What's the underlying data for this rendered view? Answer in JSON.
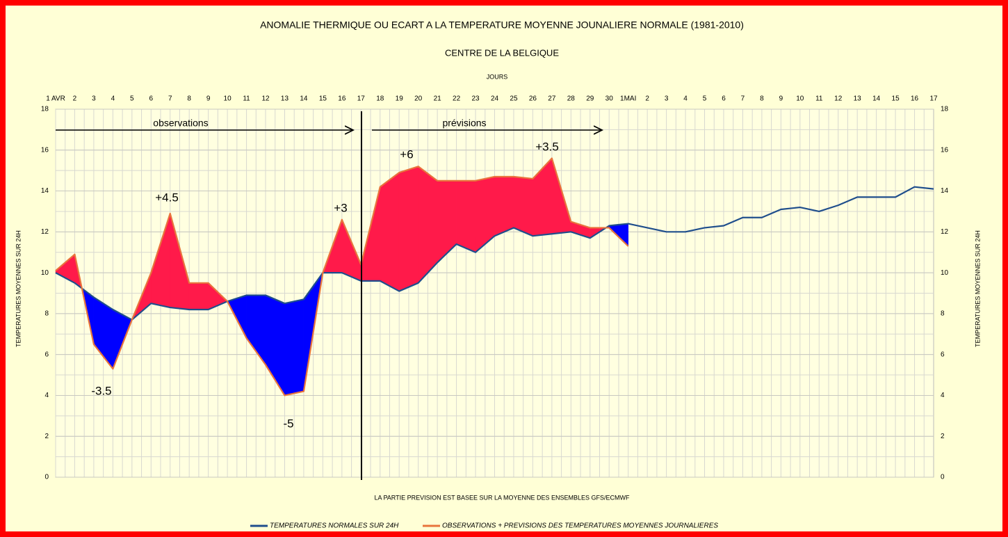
{
  "chart_data": {
    "type": "line",
    "title": "ANOMALIE THERMIQUE OU ECART A LA TEMPERATURE MOYENNE JOUNALIERE NORMALE (1981-2010)",
    "subtitle": "CENTRE DE LA BELGIQUE",
    "x_label": "JOURS",
    "y_label": "TEMPERATURES MOYENNES SUR 24H",
    "note": "LA PARTIE PREVISION EST BASEE SUR LA MOYENNE DES ENSEMBLES GFS/ECMWF",
    "categories": [
      "1 AVR",
      "2",
      "3",
      "4",
      "5",
      "6",
      "7",
      "8",
      "9",
      "10",
      "11",
      "12",
      "13",
      "14",
      "15",
      "16",
      "17",
      "18",
      "19",
      "20",
      "21",
      "22",
      "23",
      "24",
      "25",
      "26",
      "27",
      "28",
      "29",
      "30",
      "1MAI",
      "2",
      "3",
      "4",
      "5",
      "6",
      "7",
      "8",
      "9",
      "10",
      "11",
      "12",
      "13",
      "14",
      "15",
      "16",
      "17"
    ],
    "series": [
      {
        "name": "TEMPERATURES NORMALES SUR 24H",
        "color": "#1f4e8c",
        "values": [
          10.0,
          9.5,
          8.8,
          8.2,
          7.7,
          8.5,
          8.3,
          8.2,
          8.2,
          8.6,
          8.9,
          8.9,
          8.5,
          8.7,
          10.0,
          10.0,
          9.6,
          9.6,
          9.1,
          9.5,
          10.5,
          11.4,
          11.0,
          11.8,
          12.2,
          11.8,
          11.9,
          12.0,
          11.7,
          12.3,
          12.4,
          12.2,
          12.0,
          12.0,
          12.2,
          12.3,
          12.7,
          12.7,
          13.1,
          13.2,
          13.0,
          13.3,
          13.7,
          13.7,
          13.7,
          14.2,
          14.1
        ]
      },
      {
        "name": "OBSERVATIONS + PREVISIONS DES TEMPERATURES MOYENNES JOURNALIERES",
        "color": "#e8743c",
        "values": [
          10.1,
          10.9,
          6.5,
          5.3,
          7.7,
          10.0,
          12.9,
          9.5,
          9.5,
          8.6,
          6.8,
          5.5,
          4.0,
          4.2,
          10.0,
          12.6,
          10.4,
          14.2,
          14.9,
          15.2,
          14.5,
          14.5,
          14.5,
          14.7,
          14.7,
          14.6,
          15.6,
          12.5,
          12.2,
          12.2,
          11.3,
          null,
          null,
          null,
          null,
          null,
          null,
          null,
          null,
          null,
          null,
          null,
          null,
          null,
          null,
          null,
          null
        ]
      }
    ],
    "above_color": "#ff1a4a",
    "below_color": "#0000ff",
    "annotations": [
      "observations",
      "prévisions",
      "+4.5",
      "-3.5",
      "+3",
      "-5",
      "+6",
      "+3.5"
    ],
    "ylim": [
      0,
      18
    ],
    "yticks": [
      0,
      2,
      4,
      6,
      8,
      10,
      12,
      14,
      16,
      18
    ],
    "grid": true
  }
}
